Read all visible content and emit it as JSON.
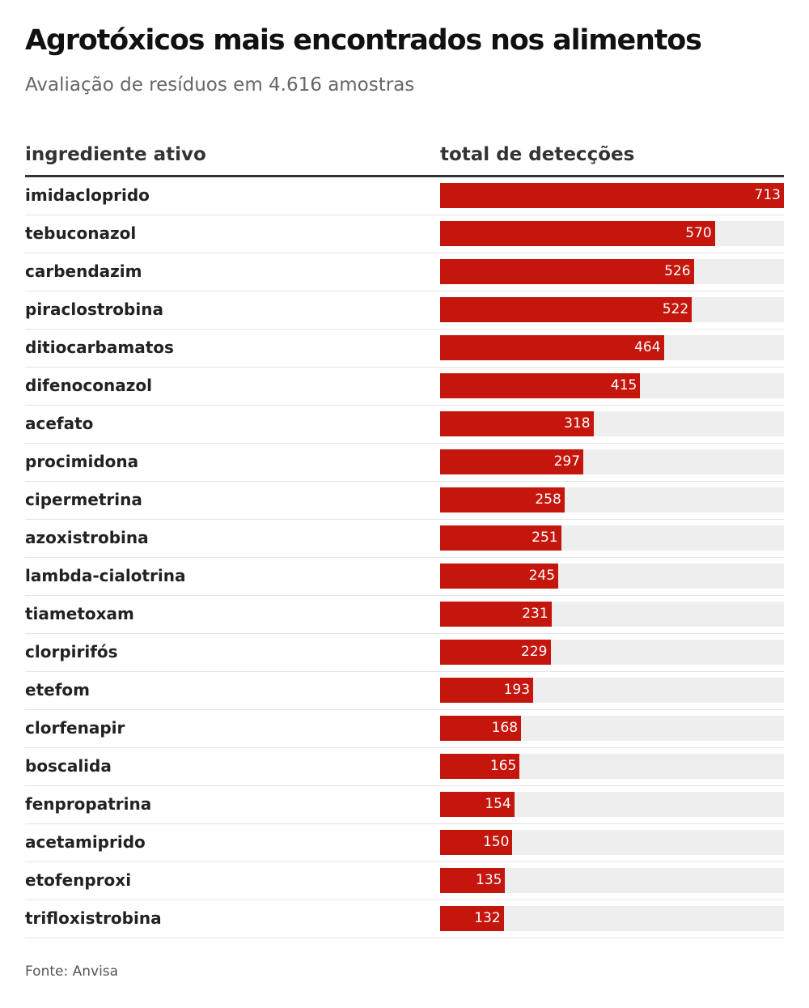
{
  "header": {
    "title": "Agrotóxicos mais encontrados nos alimentos",
    "subtitle": "Avaliação de resíduos em 4.616 amostras"
  },
  "table": {
    "col_left": "ingrediente ativo",
    "col_right": "total de detecções"
  },
  "footer": {
    "source": "Fonte: Anvisa"
  },
  "colors": {
    "bar": "#c4160d",
    "track": "#eeeeee"
  },
  "chart_data": {
    "type": "bar",
    "orientation": "horizontal",
    "title": "Agrotóxicos mais encontrados nos alimentos",
    "subtitle": "Avaliação de resíduos em 4.616 amostras",
    "xlabel": "total de detecções",
    "ylabel": "ingrediente ativo",
    "xlim": [
      0,
      713
    ],
    "grid": false,
    "categories": [
      "imidacloprido",
      "tebuconazol",
      "carbendazim",
      "piraclostrobina",
      "ditiocarbamatos",
      "difenoconazol",
      "acefato",
      "procimidona",
      "cipermetrina",
      "azoxistrobina",
      "lambda-cialotrina",
      "tiametoxam",
      "clorpirifós",
      "etefom",
      "clorfenapir",
      "boscalida",
      "fenpropatrina",
      "acetamiprido",
      "etofenproxi",
      "trifloxistrobina"
    ],
    "values": [
      713,
      570,
      526,
      522,
      464,
      415,
      318,
      297,
      258,
      251,
      245,
      231,
      229,
      193,
      168,
      165,
      154,
      150,
      135,
      132
    ]
  }
}
